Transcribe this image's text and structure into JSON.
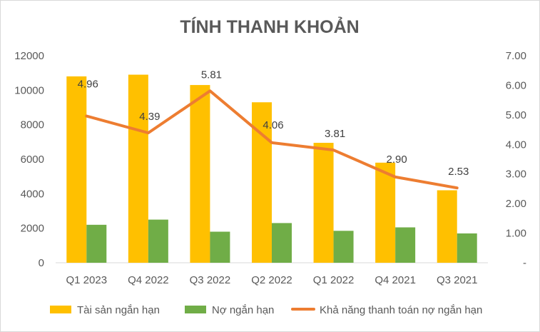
{
  "chart_data": {
    "type": "bar",
    "title": "TÍNH THANH KHOẢN",
    "categories": [
      "Q1 2023",
      "Q4 2022",
      "Q3 2022",
      "Q2 2022",
      "Q1 2022",
      "Q4 2021",
      "Q3 2021"
    ],
    "series": [
      {
        "name": "Tài sản ngắn hạn",
        "type": "bar",
        "axis": "left",
        "color": "#FFC000",
        "values": [
          10800,
          10900,
          10300,
          9300,
          6950,
          5800,
          4200
        ]
      },
      {
        "name": "Nợ ngắn hạn",
        "type": "bar",
        "axis": "left",
        "color": "#70AD47",
        "values": [
          2200,
          2500,
          1800,
          2300,
          1850,
          2050,
          1700
        ]
      },
      {
        "name": "Khả năng thanh toán nợ ngắn hạn",
        "type": "line",
        "axis": "right",
        "color": "#ED7D31",
        "values": [
          4.96,
          4.39,
          5.81,
          4.06,
          3.81,
          2.9,
          2.53
        ],
        "labels": [
          "4.96",
          "4.39",
          "5.81",
          "4.06",
          "3.81",
          "2.90",
          "2.53"
        ]
      }
    ],
    "left_axis": {
      "ylim": [
        0,
        12000
      ],
      "ticks": [
        "0",
        "2000",
        "4000",
        "6000",
        "8000",
        "10000",
        "12000"
      ]
    },
    "right_axis": {
      "ylim": [
        0,
        7
      ],
      "ticks": [
        "-",
        "1.00",
        "2.00",
        "3.00",
        "4.00",
        "5.00",
        "6.00",
        "7.00"
      ]
    },
    "grid": false,
    "legend": "bottom"
  }
}
